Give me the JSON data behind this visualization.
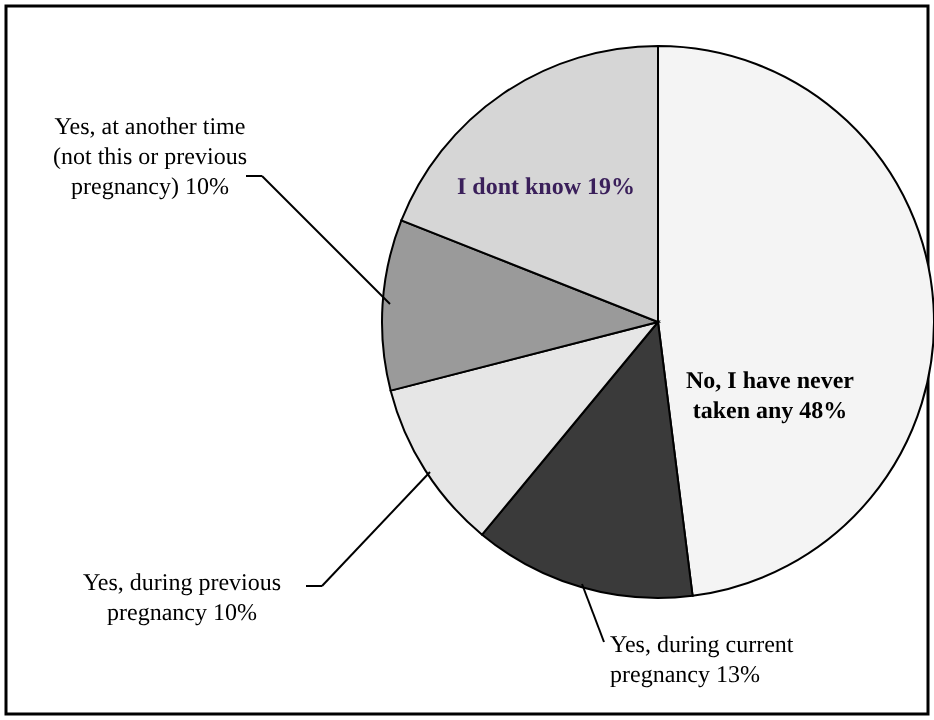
{
  "chart_data": {
    "type": "pie",
    "categories": [
      "No, I have never\ntaken any",
      "Yes, during current\npregnancy",
      "Yes, during previous\npregnancy",
      "Yes, at another time\n(not this or previous\npregnancy)",
      "I dont know"
    ],
    "values": [
      48,
      13,
      10,
      10,
      19
    ],
    "value_labels": [
      "48%",
      "13%",
      "10%",
      "10%",
      "19%"
    ],
    "colors": [
      "#f4f4f4",
      "#3a3a3a",
      "#e6e6e6",
      "#9a9a9a",
      "#d6d6d6"
    ]
  }
}
